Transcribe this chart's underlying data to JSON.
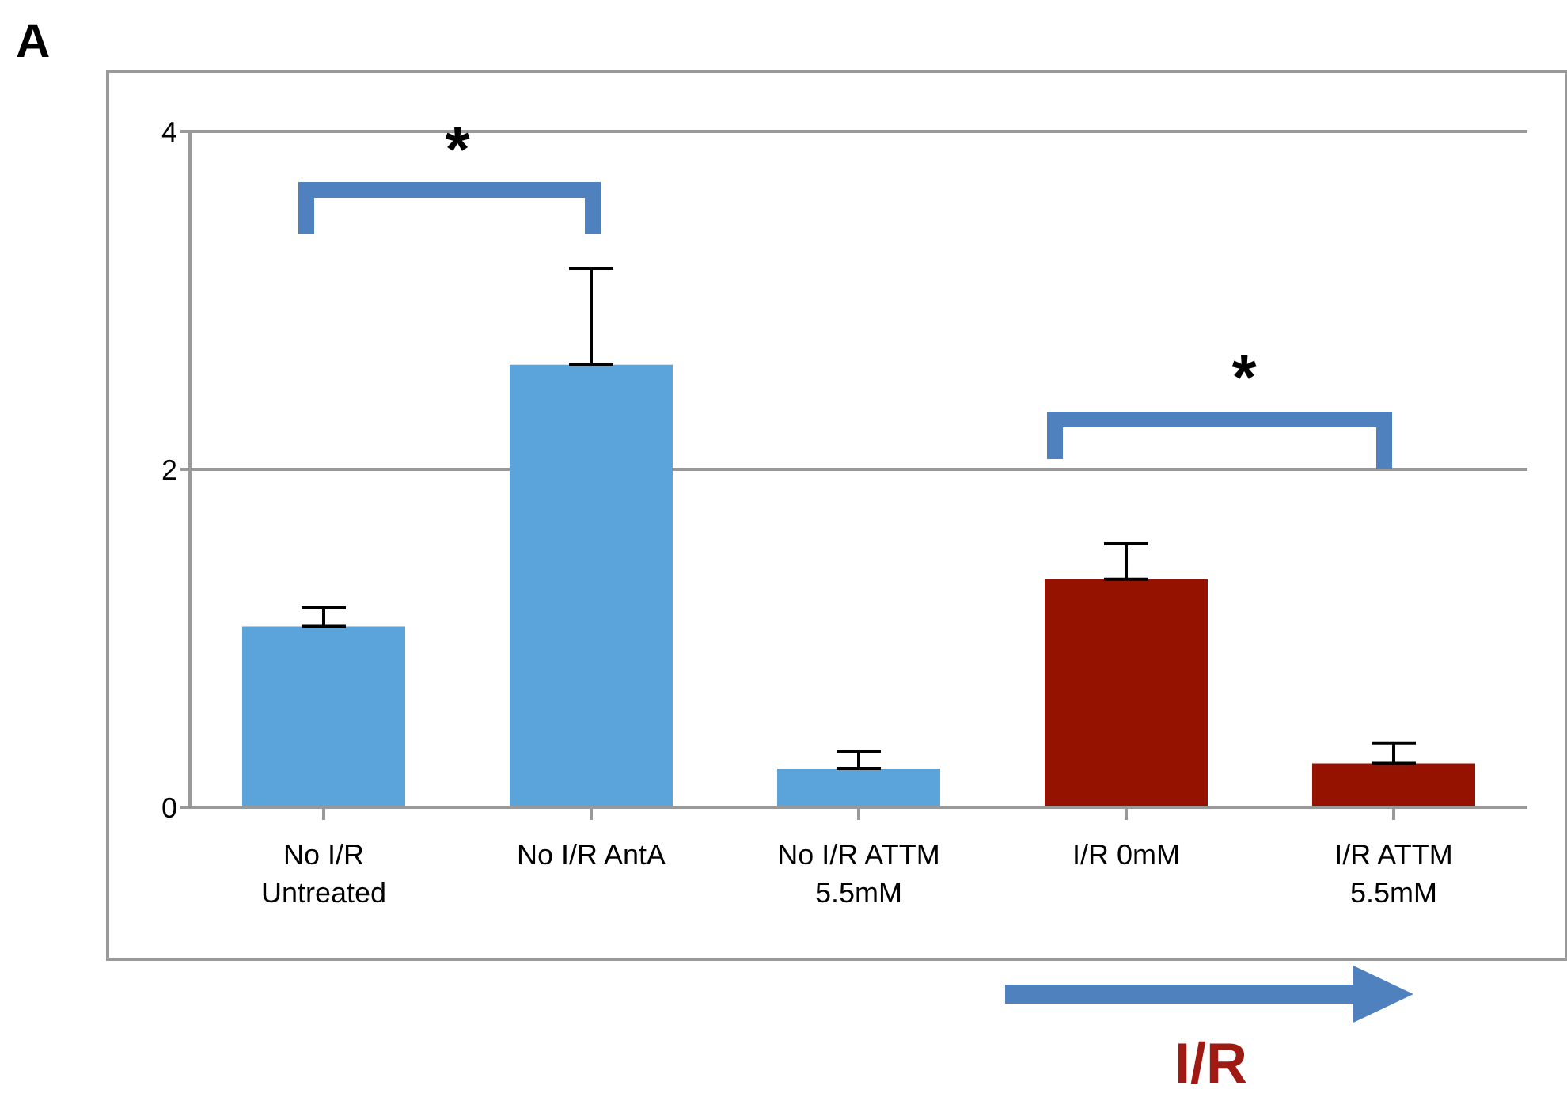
{
  "chart_data": {
    "type": "bar",
    "categories": [
      "No I/R\nUntreated",
      "No I/R AntA",
      "No I/R ATTM\n5.5mM",
      "I/R 0mM",
      "I/R ATTM\n5.5mM"
    ],
    "values": [
      1.07,
      2.62,
      0.23,
      1.35,
      0.26
    ],
    "colors": [
      "#5ba3db",
      "#5ba3db",
      "#5ba3db",
      "#951100",
      "#951100"
    ],
    "errors": [
      [
        1.07,
        1.18
      ],
      [
        2.62,
        3.19
      ],
      [
        0.23,
        0.33
      ],
      [
        1.35,
        1.56
      ],
      [
        0.26,
        0.38
      ]
    ],
    "ylim": [
      0,
      4
    ],
    "yticks": [
      0,
      2,
      4
    ],
    "grid": "y",
    "annotations": [
      "A",
      "*",
      "*",
      "I/R"
    ]
  }
}
